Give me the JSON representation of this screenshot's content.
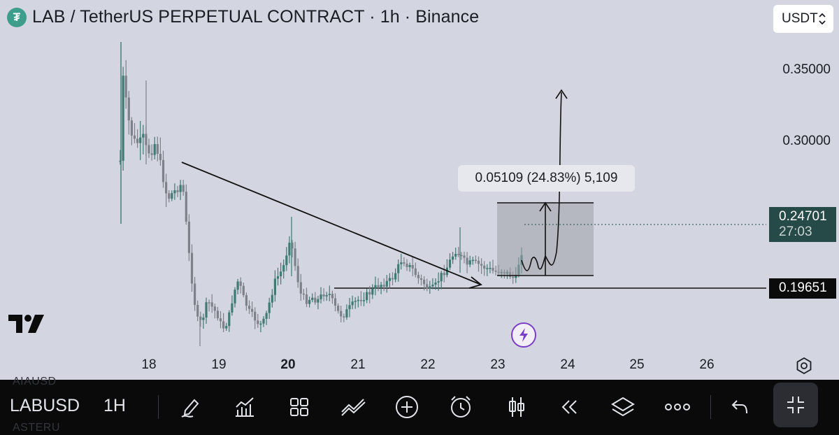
{
  "header": {
    "title": "LAB / TetherUS PERPETUAL CONTRACT · 1h · Binance",
    "logo_icon": "tether-icon",
    "currency": "USDT"
  },
  "price_axis": {
    "labels": [
      "0.35000",
      "0.30000"
    ],
    "current_price": "0.24701",
    "countdown": "27:03",
    "level_price": "0.19651"
  },
  "time_axis": {
    "labels": [
      "18",
      "19",
      "20",
      "21",
      "22",
      "23",
      "24",
      "25",
      "26"
    ],
    "bold_label": "20"
  },
  "measure": {
    "label": "0.05109 (24.83%) 5,109"
  },
  "colors": {
    "background": "#d3d5e0",
    "candle_up": "#3f7a73",
    "candle_down": "#7d8289",
    "current_price_bg": "#264a48",
    "toolbar_bg": "#0a0a0a"
  },
  "toolbar": {
    "symbol": "LABUSD",
    "interval": "1H",
    "ghost_above": "AIAUSD",
    "ghost_below": "ASTERU",
    "icons": [
      "pencil-icon",
      "indicators-icon",
      "grid-icon",
      "trendline-icon",
      "add-icon",
      "alarm-icon",
      "candles-icon",
      "replay-icon",
      "layers-icon",
      "more-icon",
      "undo-icon",
      "collapse-icon"
    ]
  }
}
